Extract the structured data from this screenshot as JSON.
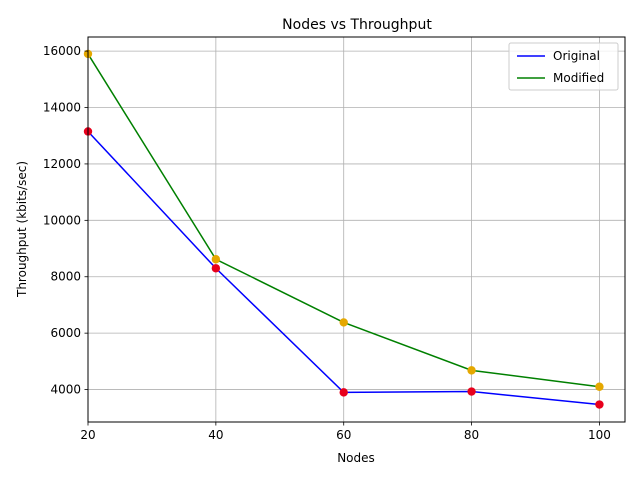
{
  "chart_data": {
    "type": "line",
    "title": "Nodes vs Throughput",
    "xlabel": "Nodes",
    "ylabel": "Throughput (kbits/sec)",
    "x": [
      20,
      40,
      60,
      80,
      100
    ],
    "xlim": [
      20,
      104
    ],
    "ylim": [
      2850,
      16500
    ],
    "xticks": [
      "20",
      "40",
      "60",
      "80",
      "100"
    ],
    "yticks": [
      "4000",
      "6000",
      "8000",
      "10000",
      "12000",
      "14000",
      "16000"
    ],
    "grid": true,
    "legend_position": "top-right",
    "series": [
      {
        "name": "Original",
        "values": [
          13150,
          8300,
          3900,
          3930,
          3470
        ],
        "line_color": "#0000ff",
        "marker_color": "#e8001c"
      },
      {
        "name": "Modified",
        "values": [
          15900,
          8620,
          6380,
          4680,
          4100
        ],
        "line_color": "#008000",
        "marker_color": "#e5a800"
      }
    ]
  }
}
